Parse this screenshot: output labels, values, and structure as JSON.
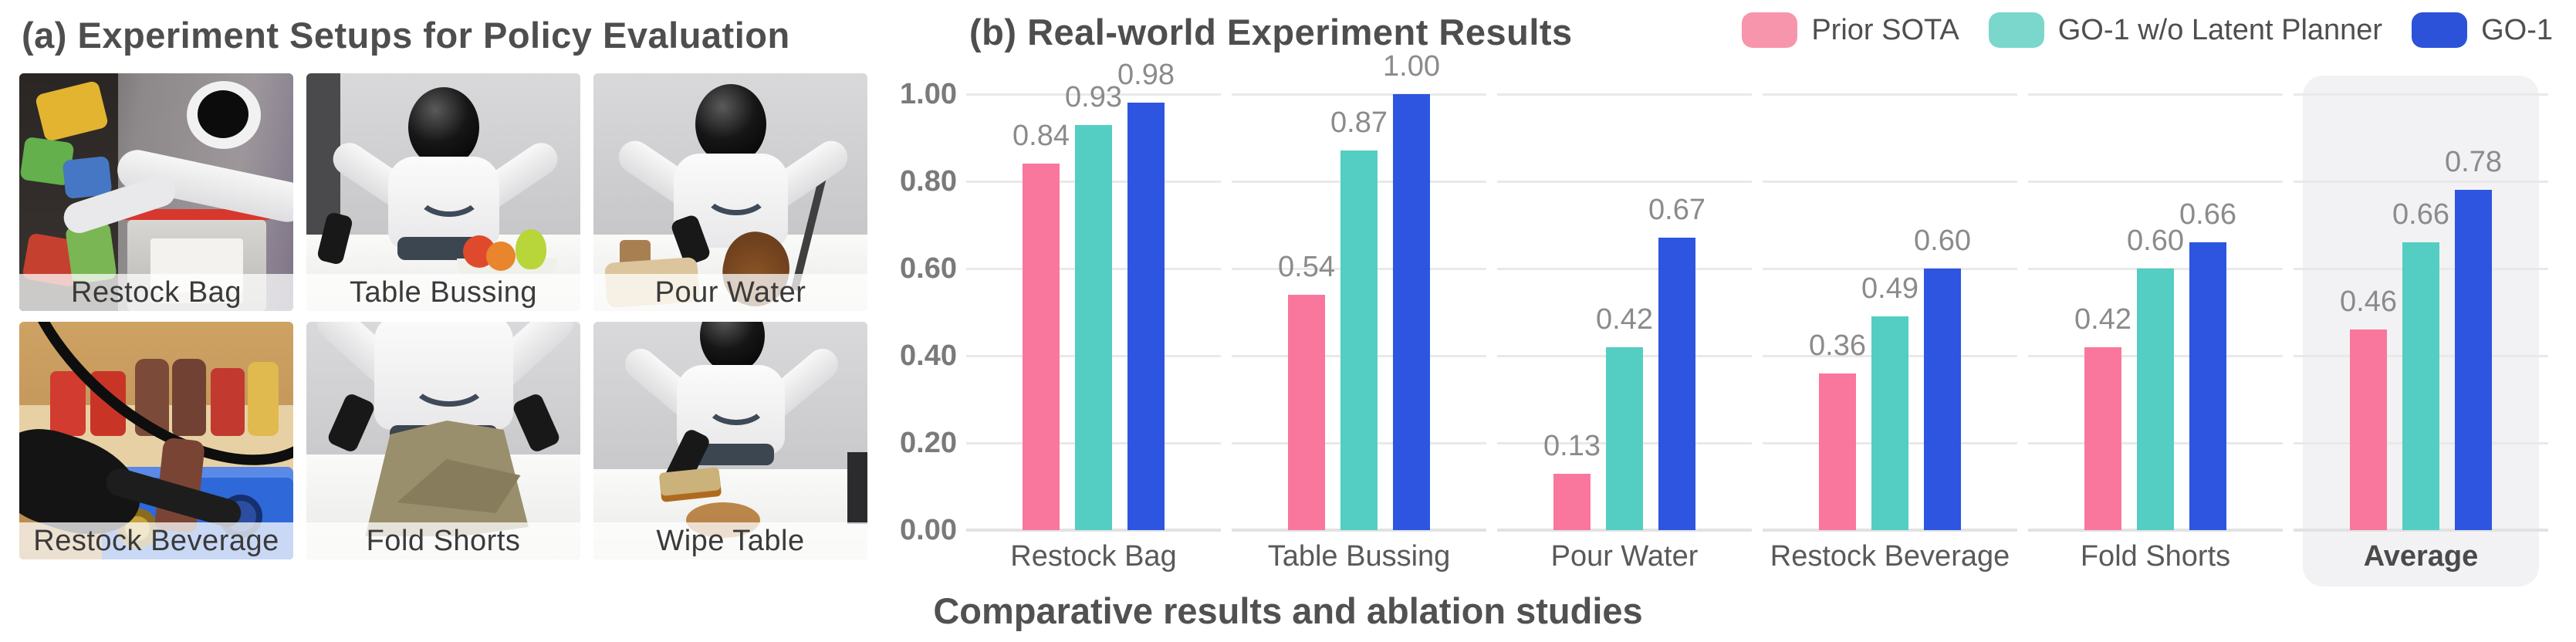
{
  "panel_a": {
    "title": "(a) Experiment Setups for Policy Evaluation",
    "tiles": [
      {
        "label": "Restock Bag",
        "scene": "restock-bag"
      },
      {
        "label": "Table Bussing",
        "scene": "table-bussing"
      },
      {
        "label": "Pour Water",
        "scene": "pour-water"
      },
      {
        "label": "Restock Beverage",
        "scene": "restock-beverage"
      },
      {
        "label": "Fold Shorts",
        "scene": "fold-shorts"
      },
      {
        "label": "Wipe Table",
        "scene": "wipe-table"
      }
    ]
  },
  "panel_b": {
    "title": "(b) Real-world Experiment Results",
    "caption": "Comparative results and ablation studies",
    "legend": [
      {
        "label": "Prior SOTA",
        "color": "#f795ac"
      },
      {
        "label": "GO-1 w/o Latent Planner",
        "color": "#7bd7cb"
      },
      {
        "label": "GO-1",
        "color": "#2b52d9"
      }
    ]
  },
  "chart_data": {
    "type": "bar",
    "title": "(b) Real-world Experiment Results",
    "categories": [
      "Restock Bag",
      "Table Bussing",
      "Pour Water",
      "Restock Beverage",
      "Fold Shorts",
      "Average"
    ],
    "series": [
      {
        "name": "Prior SOTA",
        "color": "#f9779d",
        "values": [
          0.84,
          0.54,
          0.13,
          0.36,
          0.42,
          0.46
        ]
      },
      {
        "name": "GO-1 w/o Latent Planner",
        "color": "#54cec2",
        "values": [
          0.93,
          0.87,
          0.42,
          0.49,
          0.6,
          0.66
        ]
      },
      {
        "name": "GO-1",
        "color": "#2d55e0",
        "values": [
          0.98,
          1.0,
          0.67,
          0.6,
          0.66,
          0.78
        ]
      }
    ],
    "xlabel": "",
    "ylabel": "",
    "ylim": [
      0,
      1.0
    ],
    "yticks": [
      "0.00",
      "0.20",
      "0.40",
      "0.60",
      "0.80",
      "1.00"
    ],
    "grid": true,
    "legend_position": "top-right",
    "highlight_category": "Average",
    "value_label_decimals": 2
  }
}
